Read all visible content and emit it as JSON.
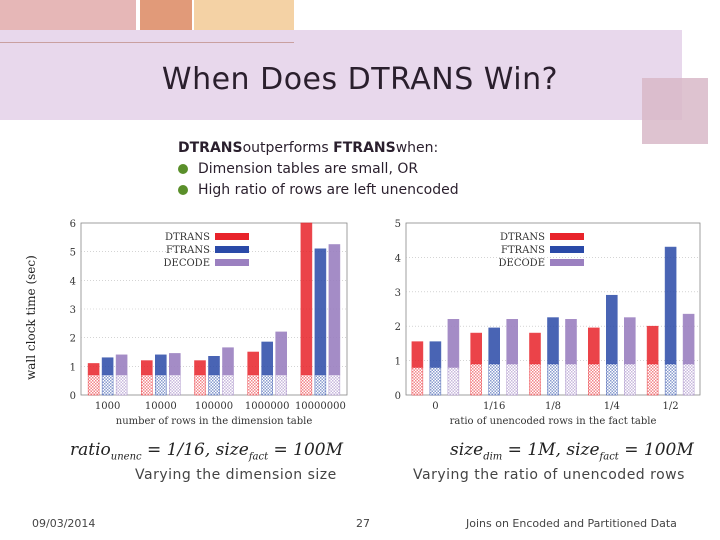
{
  "slide": {
    "title": "When Does DTRANS Win?",
    "intro_bold_1": "DTRANS",
    "intro_mid": "outperforms ",
    "intro_bold_2": "FTRANS",
    "intro_end": "when:",
    "bullets": [
      "Dimension tables are small, OR",
      "High ratio of rows are left unencoded"
    ],
    "y_axis_label": "wall clock time (sec)",
    "formula_left": {
      "p1": "ratio",
      "sub1": "unenc",
      "p2": " = 1/16, size",
      "sub2": "fact",
      "p3": " = 100M"
    },
    "formula_right": {
      "p1": "size",
      "sub1": "dim",
      "p2": " = 1M, size",
      "sub2": "fact",
      "p3": " = 100M"
    },
    "caption_left": "Varying the dimension size",
    "caption_right": "Varying the ratio of unencoded rows",
    "footer_date": "09/03/2014",
    "footer_page": "27",
    "footer_title": "Joins on Encoded and Partitioned Data"
  },
  "colors": {
    "dtrans": "#e8232a",
    "ftrans": "#2a4aa8",
    "decode": "#9b80c0",
    "deco_pink": "#e6b7b7",
    "deco_salmon": "#e19a79",
    "deco_peach": "#f4d2a5",
    "deco_lavender": "#e8d8ec",
    "deco_mauve": "#d8b8c8",
    "green_bullet": "#5a8f2a"
  },
  "chart_data": [
    {
      "type": "bar",
      "xlabel": "number of rows in the dimension table",
      "ylabel": "wall clock time (sec)",
      "ylim": [
        0,
        6
      ],
      "yticks": [
        0,
        1,
        2,
        3,
        4,
        5,
        6
      ],
      "categories": [
        "1000",
        "10000",
        "100000",
        "1000000",
        "10000000"
      ],
      "legend": "top-right",
      "grid": true,
      "series": [
        {
          "name": "DTRANS",
          "values": [
            1.1,
            1.2,
            1.2,
            1.5,
            6.0
          ],
          "base": [
            0.7,
            0.7,
            0.7,
            0.7,
            0.7
          ]
        },
        {
          "name": "FTRANS",
          "values": [
            1.3,
            1.4,
            1.35,
            1.85,
            5.1
          ],
          "base": [
            0.7,
            0.7,
            0.7,
            0.7,
            0.7
          ]
        },
        {
          "name": "DECODE",
          "values": [
            1.4,
            1.45,
            1.65,
            2.2,
            5.25
          ],
          "base": [
            0.7,
            0.7,
            0.7,
            0.7,
            0.7
          ]
        }
      ]
    },
    {
      "type": "bar",
      "xlabel": "ratio of unencoded rows in the fact table",
      "ylabel": "",
      "ylim": [
        0,
        5
      ],
      "yticks": [
        0,
        1,
        2,
        3,
        4,
        5
      ],
      "categories": [
        "0",
        "1/16",
        "1/8",
        "1/4",
        "1/2"
      ],
      "legend": "top-left",
      "grid": true,
      "series": [
        {
          "name": "DTRANS",
          "values": [
            1.55,
            1.8,
            1.8,
            1.95,
            2.0
          ],
          "base": [
            0.8,
            0.9,
            0.9,
            0.9,
            0.9
          ]
        },
        {
          "name": "FTRANS",
          "values": [
            1.55,
            1.95,
            2.25,
            2.9,
            4.3
          ],
          "base": [
            0.8,
            0.9,
            0.9,
            0.9,
            0.9
          ]
        },
        {
          "name": "DECODE",
          "values": [
            2.2,
            2.2,
            2.2,
            2.25,
            2.35
          ],
          "base": [
            0.8,
            0.9,
            0.9,
            0.9,
            0.9
          ]
        }
      ]
    }
  ]
}
